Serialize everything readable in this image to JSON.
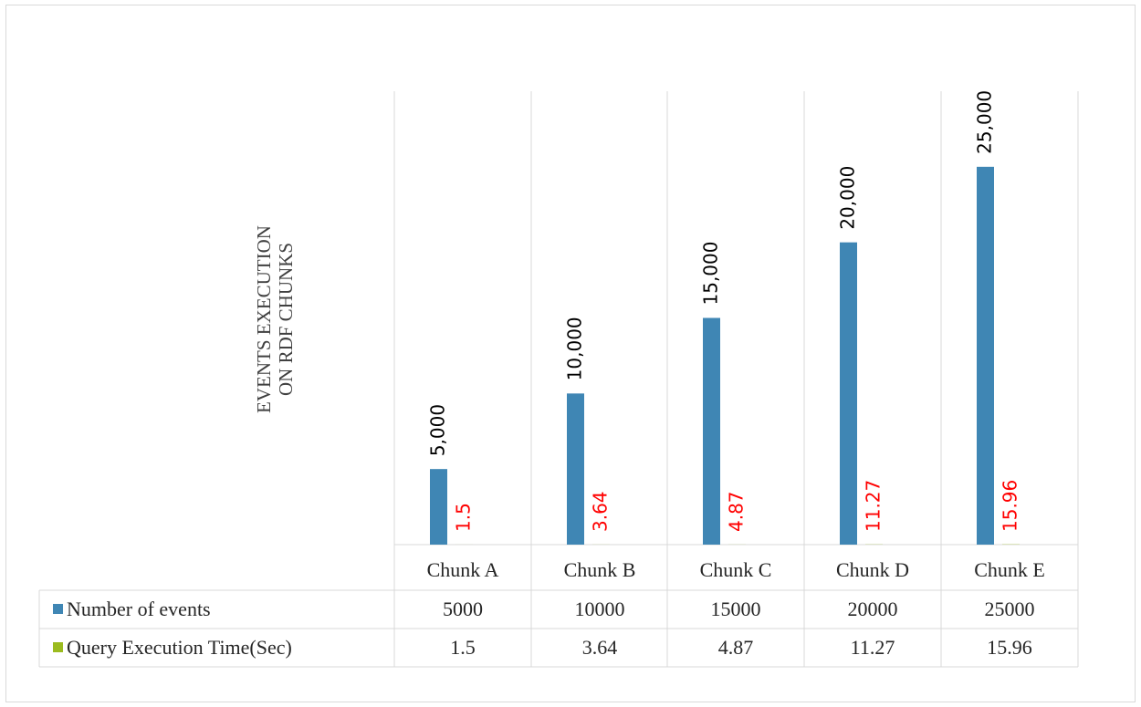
{
  "chart_data": {
    "type": "bar",
    "title": "EVENTS EXECUTION ON RDF CHUNKS",
    "title_lines": [
      "EVENTS EXECUTION",
      "ON RDF CHUNKS"
    ],
    "categories": [
      "Chunk A",
      "Chunk B",
      "Chunk C",
      "Chunk D",
      "Chunk E"
    ],
    "series": [
      {
        "name": "Number of events",
        "values": [
          5000,
          10000,
          15000,
          20000,
          25000
        ],
        "value_labels": [
          "5,000",
          "10,000",
          "15,000",
          "20,000",
          "25,000"
        ],
        "table_values": [
          "5000",
          "10000",
          "15000",
          "20000",
          "25000"
        ],
        "color": "#3f86b4",
        "label_color": "#000000"
      },
      {
        "name": "Query Execution Time(Sec)",
        "values": [
          1.5,
          3.64,
          4.87,
          11.27,
          15.96
        ],
        "value_labels": [
          "1.5",
          "3.64",
          "4.87",
          "11.27",
          "15.96"
        ],
        "table_values": [
          "1.5",
          "3.64",
          "4.87",
          "11.27",
          "15.96"
        ],
        "color": "#9bbb1f",
        "label_color": "#ff0000"
      }
    ],
    "ylim": [
      0,
      30000
    ],
    "grid": false,
    "data_table": true,
    "legend_placement": "data-table"
  }
}
